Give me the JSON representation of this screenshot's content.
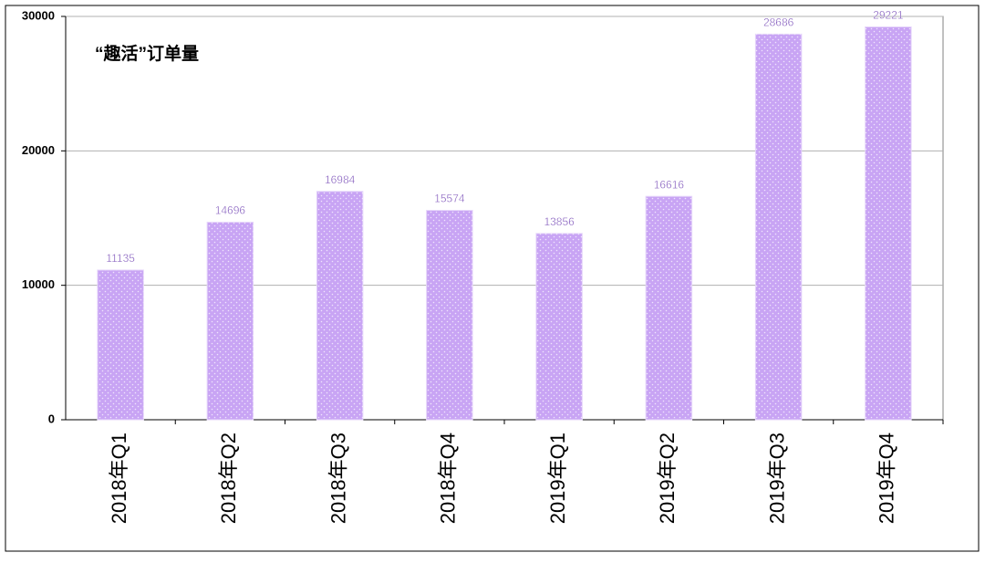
{
  "chart_data": {
    "type": "bar",
    "title": "“趣活”订单量",
    "categories": [
      "2018年Q1",
      "2018年Q2",
      "2018年Q3",
      "2018年Q4",
      "2019年Q1",
      "2019年Q2",
      "2019年Q3",
      "2019年Q4"
    ],
    "values": [
      11135,
      14696,
      16984,
      15574,
      13856,
      16616,
      28686,
      29221
    ],
    "color": "#c8a4f4",
    "label_color": "#7a4fb8",
    "ylim": [
      0,
      30000
    ],
    "yticks": [
      0,
      10000,
      20000,
      30000
    ],
    "grid": true
  }
}
